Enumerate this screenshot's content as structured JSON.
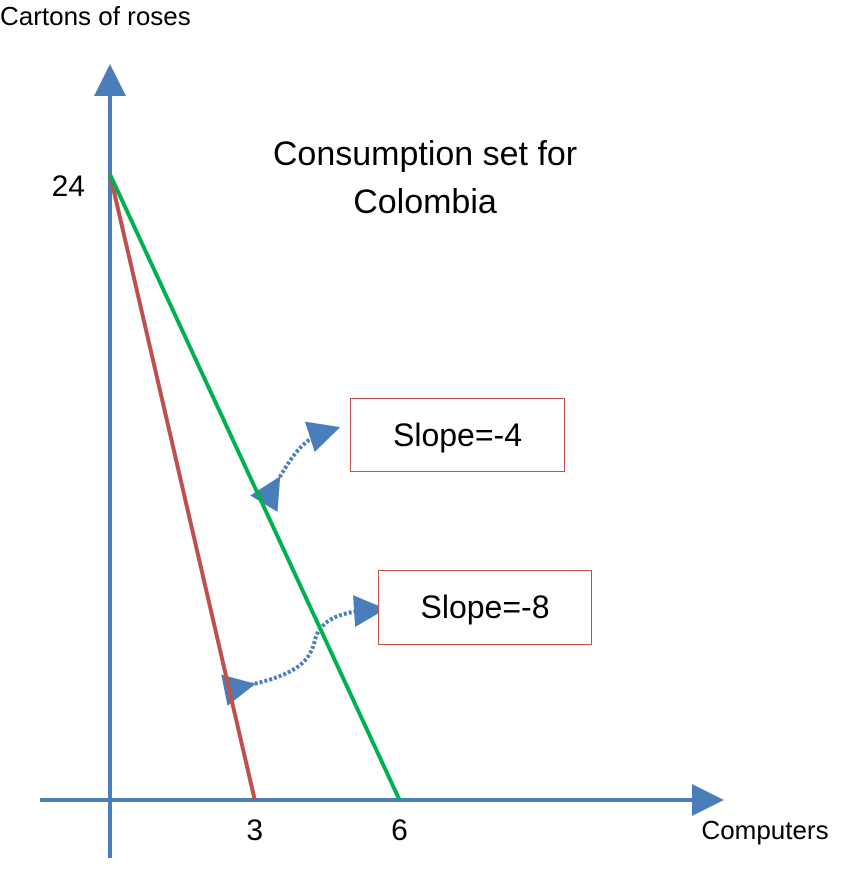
{
  "chart_data": {
    "type": "line",
    "title": "Consumption set for Colombia",
    "x_label": "Computers",
    "y_label": "Cartons of roses",
    "xlim": [
      0,
      12.6
    ],
    "ylim": [
      0,
      28
    ],
    "xticks": [
      3,
      6
    ],
    "yticks": [
      24
    ],
    "series": [
      {
        "color": "#c0504d",
        "x": [
          0,
          3
        ],
        "values": [
          24,
          0
        ]
      },
      {
        "color": "#00b050",
        "x": [
          0,
          6
        ],
        "values": [
          24,
          0
        ]
      }
    ],
    "annotations": [
      "Slope=-4",
      "Slope=-8"
    ]
  }
}
